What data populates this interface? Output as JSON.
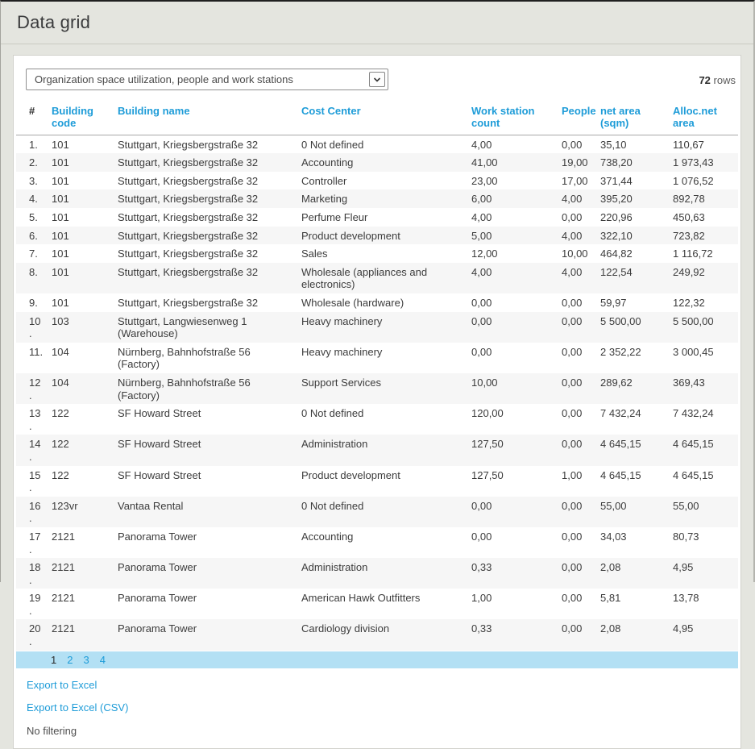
{
  "page": {
    "title": "Data grid"
  },
  "toolbar": {
    "report_selector_value": "Organization space utilization, people and work stations",
    "row_count_value": "72",
    "row_count_label": "rows"
  },
  "table": {
    "columns": [
      {
        "label": "#",
        "sortable": false
      },
      {
        "label": "Building code",
        "sortable": true
      },
      {
        "label": "Building name",
        "sortable": true
      },
      {
        "label": "Cost Center",
        "sortable": true
      },
      {
        "label": "Work station count",
        "sortable": true
      },
      {
        "label": "People",
        "sortable": true
      },
      {
        "label": "net area (sqm)",
        "sortable": true
      },
      {
        "label": "Alloc.net area",
        "sortable": true
      }
    ],
    "rows": [
      [
        "1.",
        "101",
        "Stuttgart, Kriegsbergstraße 32",
        "0 Not defined",
        "4,00",
        "0,00",
        "35,10",
        "110,67"
      ],
      [
        "2.",
        "101",
        "Stuttgart, Kriegsbergstraße 32",
        "Accounting",
        "41,00",
        "19,00",
        "738,20",
        "1 973,43"
      ],
      [
        "3.",
        "101",
        "Stuttgart, Kriegsbergstraße 32",
        "Controller",
        "23,00",
        "17,00",
        "371,44",
        "1 076,52"
      ],
      [
        "4.",
        "101",
        "Stuttgart, Kriegsbergstraße 32",
        "Marketing",
        "6,00",
        "4,00",
        "395,20",
        "892,78"
      ],
      [
        "5.",
        "101",
        "Stuttgart, Kriegsbergstraße 32",
        "Perfume Fleur",
        "4,00",
        "0,00",
        "220,96",
        "450,63"
      ],
      [
        "6.",
        "101",
        "Stuttgart, Kriegsbergstraße 32",
        "Product development",
        "5,00",
        "4,00",
        "322,10",
        "723,82"
      ],
      [
        "7.",
        "101",
        "Stuttgart, Kriegsbergstraße 32",
        "Sales",
        "12,00",
        "10,00",
        "464,82",
        "1 116,72"
      ],
      [
        "8.",
        "101",
        "Stuttgart, Kriegsbergstraße 32",
        "Wholesale (appliances and electronics)",
        "4,00",
        "4,00",
        "122,54",
        "249,92"
      ],
      [
        "9.",
        "101",
        "Stuttgart, Kriegsbergstraße 32",
        "Wholesale (hardware)",
        "0,00",
        "0,00",
        "59,97",
        "122,32"
      ],
      [
        "10.",
        "103",
        "Stuttgart, Langwiesenweg 1 (Warehouse)",
        "Heavy machinery",
        "0,00",
        "0,00",
        "5 500,00",
        "5 500,00"
      ],
      [
        "11.",
        "104",
        "Nürnberg, Bahnhofstraße 56 (Factory)",
        "Heavy machinery",
        "0,00",
        "0,00",
        "2 352,22",
        "3 000,45"
      ],
      [
        "12.",
        "104",
        "Nürnberg, Bahnhofstraße 56 (Factory)",
        "Support Services",
        "10,00",
        "0,00",
        "289,62",
        "369,43"
      ],
      [
        "13.",
        "122",
        "SF Howard Street",
        "0 Not defined",
        "120,00",
        "0,00",
        "7 432,24",
        "7 432,24"
      ],
      [
        "14.",
        "122",
        "SF Howard Street",
        "Administration",
        "127,50",
        "0,00",
        "4 645,15",
        "4 645,15"
      ],
      [
        "15.",
        "122",
        "SF Howard Street",
        "Product development",
        "127,50",
        "1,00",
        "4 645,15",
        "4 645,15"
      ],
      [
        "16.",
        "123vr",
        "Vantaa Rental",
        "0 Not defined",
        "0,00",
        "0,00",
        "55,00",
        "55,00"
      ],
      [
        "17.",
        "2121",
        "Panorama Tower",
        "Accounting",
        "0,00",
        "0,00",
        "34,03",
        "80,73"
      ],
      [
        "18.",
        "2121",
        "Panorama Tower",
        "Administration",
        "0,33",
        "0,00",
        "2,08",
        "4,95"
      ],
      [
        "19.",
        "2121",
        "Panorama Tower",
        "American Hawk Outfitters",
        "1,00",
        "0,00",
        "5,81",
        "13,78"
      ],
      [
        "20.",
        "2121",
        "Panorama Tower",
        "Cardiology division",
        "0,33",
        "0,00",
        "2,08",
        "4,95"
      ]
    ]
  },
  "pagination": {
    "pages": [
      {
        "label": "1",
        "current": true
      },
      {
        "label": "2",
        "current": false
      },
      {
        "label": "3",
        "current": false
      },
      {
        "label": "4",
        "current": false
      }
    ]
  },
  "footer": {
    "export_excel_label": "Export to Excel",
    "export_csv_label": "Export to Excel (CSV)",
    "filter_status": "No filtering"
  },
  "colors": {
    "accent_blue": "#1e9cd8",
    "pager_background": "#b3e0f4",
    "page_background": "#e4e5df"
  }
}
